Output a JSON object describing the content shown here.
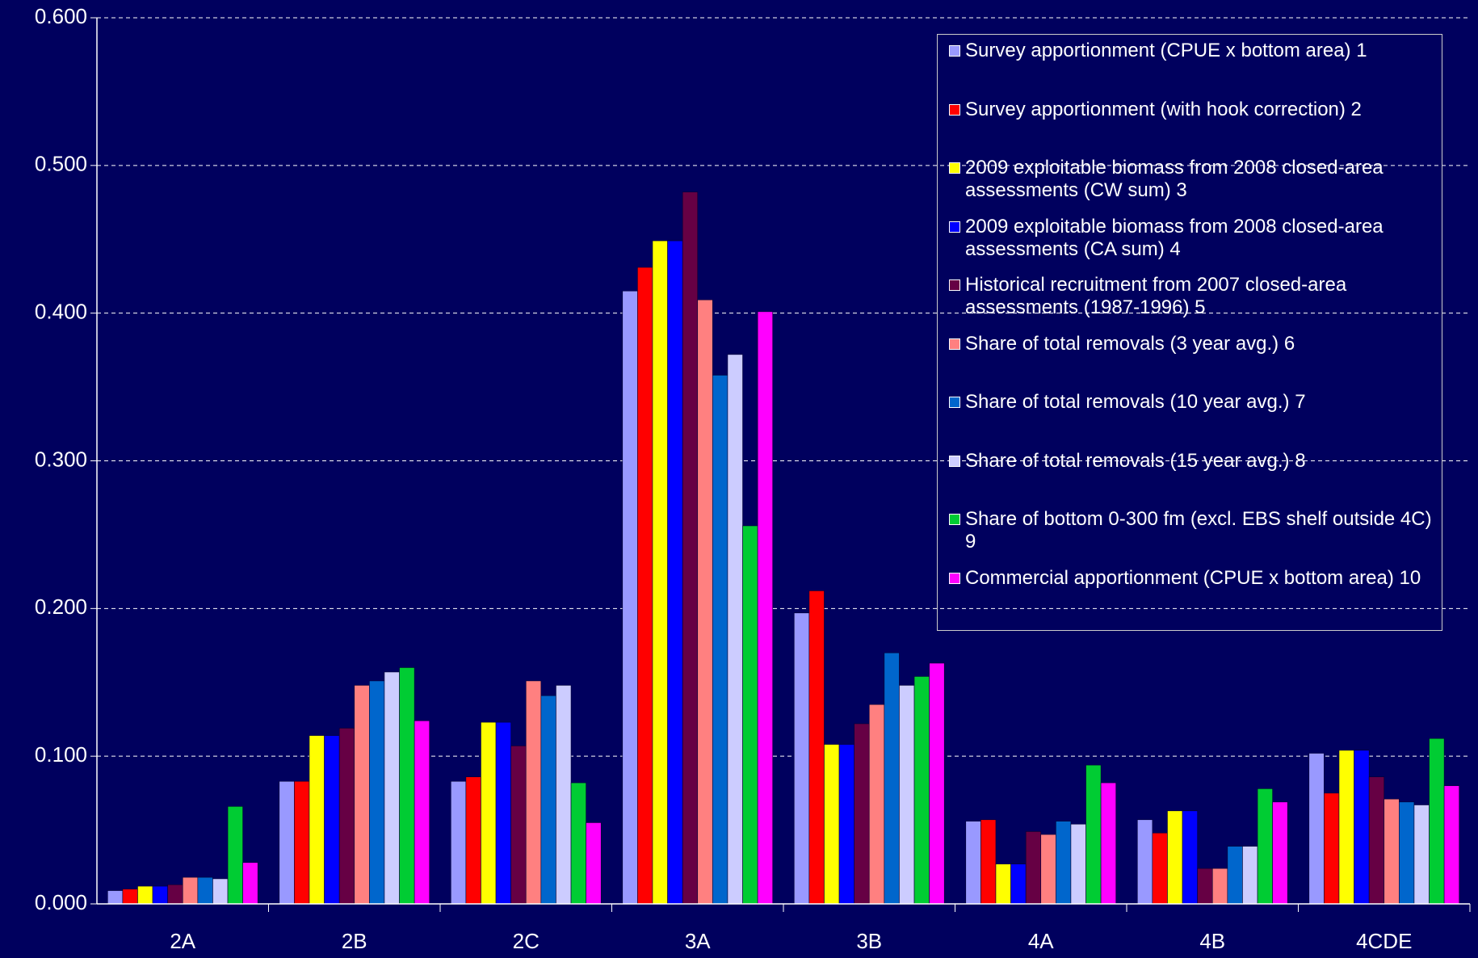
{
  "chart_data": {
    "type": "bar",
    "categories": [
      "2A",
      "2B",
      "2C",
      "3A",
      "3B",
      "4A",
      "4B",
      "4CDE"
    ],
    "series": [
      {
        "name": "Survey apportionment (CPUE x bottom area) 1",
        "color": "#9999ff",
        "values": [
          0.009,
          0.083,
          0.083,
          0.415,
          0.197,
          0.056,
          0.057,
          0.102
        ]
      },
      {
        "name": "Survey apportionment (with hook correction) 2",
        "color": "#ff0000",
        "values": [
          0.01,
          0.083,
          0.086,
          0.431,
          0.212,
          0.057,
          0.048,
          0.075
        ]
      },
      {
        "name": "2009 exploitable biomass from 2008 closed-area assessments (CW sum) 3",
        "color": "#ffff00",
        "values": [
          0.012,
          0.114,
          0.123,
          0.449,
          0.108,
          0.027,
          0.063,
          0.104
        ]
      },
      {
        "name": "2009 exploitable biomass from 2008 closed-area assessments (CA sum) 4",
        "color": "#0000ff",
        "values": [
          0.012,
          0.114,
          0.123,
          0.449,
          0.108,
          0.027,
          0.063,
          0.104
        ]
      },
      {
        "name": "Historical recruitment from  2007 closed-area assessments (1987-1996) 5",
        "color": "#660044",
        "values": [
          0.013,
          0.119,
          0.107,
          0.482,
          0.122,
          0.049,
          0.024,
          0.086
        ]
      },
      {
        "name": "Share of total removals (3 year avg.) 6",
        "color": "#ff8080",
        "values": [
          0.018,
          0.148,
          0.151,
          0.409,
          0.135,
          0.047,
          0.024,
          0.071
        ]
      },
      {
        "name": "Share of total removals (10 year avg.) 7",
        "color": "#0066cc",
        "values": [
          0.018,
          0.151,
          0.141,
          0.358,
          0.17,
          0.056,
          0.039,
          0.069
        ]
      },
      {
        "name": "Share of total removals (15 year avg.) 8",
        "color": "#ccccff",
        "values": [
          0.017,
          0.157,
          0.148,
          0.372,
          0.148,
          0.054,
          0.039,
          0.067
        ]
      },
      {
        "name": "Share of bottom 0-300 fm (excl. EBS shelf outside 4C) 9",
        "color": "#00cc33",
        "values": [
          0.066,
          0.16,
          0.082,
          0.256,
          0.154,
          0.094,
          0.078,
          0.112
        ]
      },
      {
        "name": "Commercial apportionment (CPUE x bottom area) 10",
        "color": "#ff00ff",
        "values": [
          0.028,
          0.124,
          0.055,
          0.401,
          0.163,
          0.082,
          0.069,
          0.08
        ]
      }
    ],
    "ylim": [
      0,
      0.6
    ],
    "yticks": [
      {
        "value": 0,
        "label": "0.000"
      },
      {
        "value": 0.1,
        "label": "0.100"
      },
      {
        "value": 0.2,
        "label": "0.200"
      },
      {
        "value": 0.3,
        "label": "0.300"
      },
      {
        "value": 0.4,
        "label": "0.400"
      },
      {
        "value": 0.5,
        "label": "0.500"
      },
      {
        "value": 0.6,
        "label": "0.600"
      }
    ],
    "grid": true,
    "legend": "upper right"
  }
}
